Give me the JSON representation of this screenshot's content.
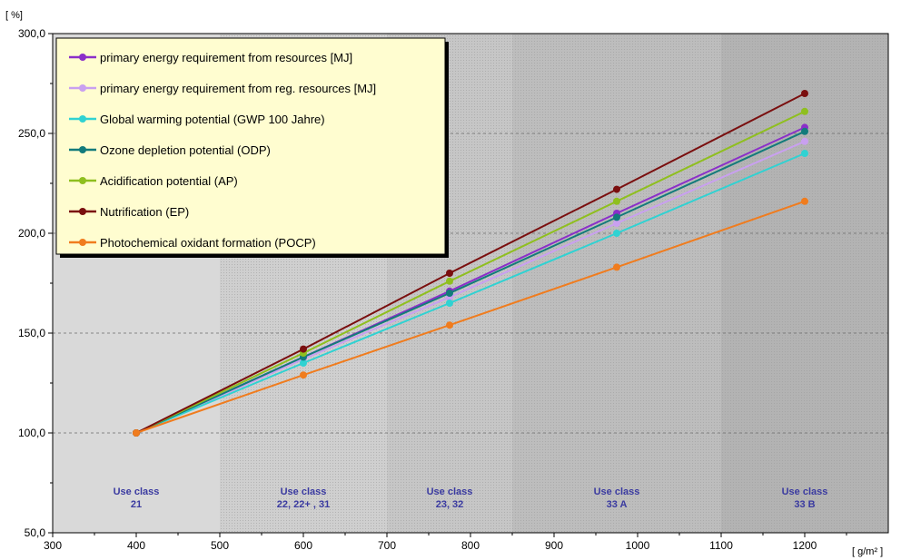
{
  "chart_data": {
    "type": "line",
    "ylabel": "[ %]",
    "xlabel": "[ g/m² ]",
    "xlim": [
      300,
      1300
    ],
    "ylim": [
      50,
      300
    ],
    "x_ticks": [
      "300",
      "400",
      "500",
      "600",
      "700",
      "800",
      "900",
      "1000",
      "1100",
      "1200"
    ],
    "y_ticks": [
      "300,0",
      "250,0",
      "200,0",
      "150,0",
      "100,0",
      "50,0"
    ],
    "grid": "horizontal dashed",
    "legend_position": "top-left",
    "x": [
      400,
      600,
      775,
      975,
      1200
    ],
    "series": [
      {
        "name": "primary energy requirement from resources  [MJ]",
        "color": "#8b2fc9",
        "values": [
          100,
          138,
          171,
          210,
          253
        ]
      },
      {
        "name": "primary energy requirement from reg. resources  [MJ]",
        "color": "#c9a0f0",
        "values": [
          100,
          137,
          168,
          205,
          246
        ]
      },
      {
        "name": "Global warming potential (GWP 100 Jahre)",
        "color": "#30d2d2",
        "values": [
          100,
          135,
          165,
          200,
          240
        ]
      },
      {
        "name": "Ozone depletion potential (ODP)",
        "color": "#137b7b",
        "values": [
          100,
          138,
          170,
          208,
          251
        ]
      },
      {
        "name": "Acidification potential (AP)",
        "color": "#8fbf1f",
        "values": [
          100,
          140,
          176,
          216,
          261
        ]
      },
      {
        "name": "Nutrification (EP)",
        "color": "#7a0f0f",
        "values": [
          100,
          142,
          180,
          222,
          270
        ]
      },
      {
        "name": "Photochemical oxidant formation (POCP)",
        "color": "#f07c1e",
        "values": [
          100,
          129,
          154,
          183,
          216
        ]
      }
    ],
    "bands": [
      {
        "from": 300,
        "to": 500,
        "label1": "Use class",
        "label2": "21",
        "label_x": 400,
        "fill": "#d9d9d9"
      },
      {
        "from": 500,
        "to": 700,
        "label1": "Use class",
        "label2": "22, 22+ , 31",
        "label_x": 600,
        "fill": "#cfcfcf"
      },
      {
        "from": 700,
        "to": 850,
        "label1": "Use class",
        "label2": "23, 32",
        "label_x": 775,
        "fill": "#c6c6c6"
      },
      {
        "from": 850,
        "to": 1100,
        "label1": "Use class",
        "label2": "33 A",
        "label_x": 975,
        "fill": "#bdbdbd"
      },
      {
        "from": 1100,
        "to": 1300,
        "label1": "Use class",
        "label2": "33 B",
        "label_x": 1200,
        "fill": "#b3b3b3"
      }
    ]
  }
}
